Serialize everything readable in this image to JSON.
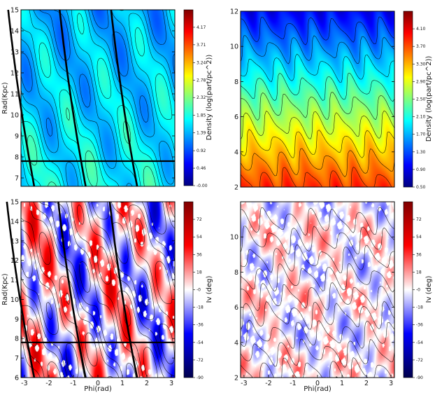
{
  "chart_data": [
    {
      "type": "heatmap",
      "panel": "top-left",
      "quantity": "Density",
      "ylabel": "Rad(Kpc)",
      "xlabel": "",
      "xlim": [
        -3.14,
        3.14
      ],
      "ylim": [
        6.6,
        15
      ],
      "yticks": [
        "7",
        "8",
        "9",
        "10",
        "11",
        "12",
        "13",
        "14",
        "15"
      ],
      "xticks": [],
      "hline": 7.8,
      "colormap": "jet",
      "colorbar": {
        "label": "Density (log(part/pc^2))",
        "range": [
          -0.0,
          4.63
        ],
        "ticks": [
          "4.17",
          "3.71",
          "3.24",
          "2.78",
          "2.32",
          "1.85",
          "1.39",
          "0.92",
          "0.46",
          "-0.00"
        ]
      },
      "field_level_range": [
        1.2,
        2.2
      ],
      "spiral_arms": 3
    },
    {
      "type": "heatmap",
      "panel": "top-right",
      "quantity": "Density",
      "ylabel": "",
      "xlabel": "",
      "xlim": [
        -3.14,
        3.14
      ],
      "ylim": [
        2,
        12
      ],
      "yticks": [
        "2",
        "4",
        "6",
        "8",
        "10",
        "12"
      ],
      "xticks": [],
      "colormap": "jet",
      "colorbar": {
        "label": "Density (log(part/pc^2))",
        "range": [
          0.5,
          4.5
        ],
        "ticks": [
          "4.10",
          "3.70",
          "3.30",
          "2.90",
          "2.50",
          "2.10",
          "1.70",
          "1.30",
          "0.90",
          "0.50"
        ]
      },
      "field_level_range": [
        1.2,
        4.0
      ]
    },
    {
      "type": "heatmap",
      "panel": "bottom-left",
      "quantity": "Iv",
      "ylabel": "Rad(Kpc)",
      "xlabel": "Phi(rad)",
      "xlim": [
        -3.14,
        3.14
      ],
      "ylim": [
        6,
        15
      ],
      "yticks": [
        "6",
        "7",
        "8",
        "9",
        "10",
        "11",
        "12",
        "13",
        "14",
        "15"
      ],
      "xticks": [
        "-3",
        "-2",
        "-1",
        "0",
        "1",
        "2",
        "3"
      ],
      "hline": 7.8,
      "colormap": "seismic",
      "colorbar": {
        "label": "Iv (deg)",
        "range": [
          -90,
          90
        ],
        "ticks": [
          "72",
          "54",
          "36",
          "18",
          "-0",
          "-18",
          "-36",
          "-54",
          "-72",
          "-90"
        ]
      }
    },
    {
      "type": "heatmap",
      "panel": "bottom-right",
      "quantity": "Iv",
      "ylabel": "",
      "xlabel": "Phi(rad)",
      "xlim": [
        -3.14,
        3.14
      ],
      "ylim": [
        2,
        12
      ],
      "yticks": [
        "2",
        "4",
        "6",
        "8",
        "10"
      ],
      "xticks": [
        "-3",
        "-2",
        "-1",
        "0",
        "1",
        "2",
        "3"
      ],
      "colormap": "seismic",
      "colorbar": {
        "label": "Iv (deg)",
        "range": [
          -90,
          90
        ],
        "ticks": [
          "72",
          "54",
          "36",
          "18",
          "-0",
          "-18",
          "-36",
          "-54",
          "-72",
          "-90"
        ]
      }
    }
  ]
}
